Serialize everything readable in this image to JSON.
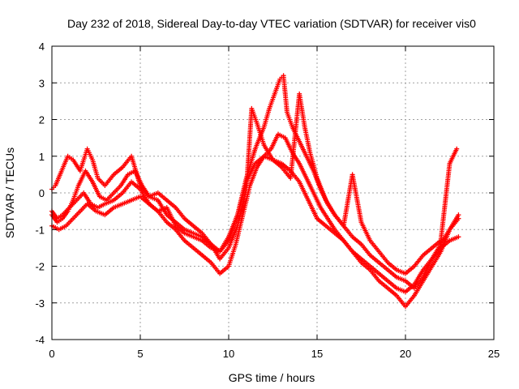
{
  "chart_data": {
    "type": "scatter",
    "title": "Day 232 of 2018, Sidereal Day-to-day VTEC variation (SDTVAR) for receiver vis0",
    "xlabel": "GPS time / hours",
    "ylabel": "SDTVAR / TECUs",
    "xlim": [
      0,
      25
    ],
    "ylim": [
      -4,
      4
    ],
    "xticks": [
      0,
      5,
      10,
      15,
      20,
      25
    ],
    "yticks": [
      -4,
      -3,
      -2,
      -1,
      0,
      1,
      2,
      3,
      4
    ],
    "xtick_labels": [
      "0",
      "5",
      "10",
      "15",
      "20",
      "25"
    ],
    "ytick_labels": [
      "-4",
      "-3",
      "-2",
      "-1",
      "0",
      "1",
      "2",
      "3",
      "4"
    ],
    "grid": true,
    "marker": "+",
    "color": "#ff0000",
    "series": [
      {
        "name": "track-1",
        "x": [
          0.0,
          0.3,
          0.6,
          1.0,
          1.4,
          1.8,
          2.2,
          2.6,
          3.0,
          3.5,
          4.0,
          4.5,
          5.0,
          5.5,
          6.0,
          6.5,
          7.0,
          7.5,
          8.0,
          8.5,
          9.0,
          9.5,
          10.0,
          10.5,
          11.0,
          11.5,
          12.0,
          12.5,
          13.0,
          13.5,
          14.0,
          14.5,
          15.0,
          15.5,
          16.0,
          16.5,
          17.0,
          17.5,
          18.0,
          18.5,
          19.0,
          19.5,
          20.0,
          20.5,
          21.0,
          21.5,
          22.0,
          22.5,
          23.0
        ],
        "y": [
          -0.5,
          -0.7,
          -0.6,
          -0.4,
          -0.2,
          0.0,
          -0.3,
          -0.4,
          -0.3,
          -0.2,
          0.0,
          0.3,
          0.1,
          -0.3,
          -0.5,
          -0.4,
          -0.9,
          -1.1,
          -1.2,
          -1.3,
          -1.5,
          -1.6,
          -1.2,
          -0.6,
          0.3,
          0.8,
          1.0,
          0.9,
          0.8,
          0.6,
          0.3,
          -0.2,
          -0.7,
          -0.9,
          -1.1,
          -1.3,
          -1.6,
          -1.8,
          -2.0,
          -2.2,
          -2.4,
          -2.6,
          -2.7,
          -2.5,
          -2.1,
          -1.8,
          -1.5,
          -1.3,
          -1.2
        ]
      },
      {
        "name": "track-2",
        "x": [
          0.0,
          0.4,
          0.8,
          1.2,
          1.6,
          2.0,
          2.5,
          3.0,
          3.5,
          4.0,
          4.5,
          5.0,
          5.5,
          6.0,
          6.5,
          7.0,
          7.5,
          8.0,
          8.5,
          9.0,
          9.5,
          10.0,
          10.4,
          10.8,
          11.2,
          11.6,
          12.0,
          12.4,
          12.8,
          13.2,
          13.6,
          14.0,
          14.4,
          14.8,
          15.2,
          15.6,
          16.0,
          16.5,
          17.0,
          17.5,
          18.0,
          18.5,
          19.0,
          19.5,
          20.0,
          20.5,
          21.0,
          21.5,
          22.0,
          22.5,
          23.0
        ],
        "y": [
          -0.9,
          -1.0,
          -0.9,
          -0.7,
          -0.5,
          -0.3,
          -0.5,
          -0.6,
          -0.4,
          -0.3,
          -0.2,
          -0.1,
          -0.3,
          -0.5,
          -0.8,
          -1.0,
          -1.3,
          -1.5,
          -1.7,
          -1.9,
          -2.2,
          -2.0,
          -1.4,
          -0.6,
          0.2,
          0.7,
          1.0,
          1.2,
          1.6,
          1.5,
          1.1,
          0.8,
          0.4,
          0.0,
          -0.4,
          -0.7,
          -1.0,
          -1.3,
          -1.6,
          -1.9,
          -2.1,
          -2.4,
          -2.6,
          -2.8,
          -3.1,
          -2.8,
          -2.4,
          -2.0,
          -1.6,
          -1.0,
          -0.7
        ]
      },
      {
        "name": "track-3",
        "x": [
          0.0,
          0.3,
          0.6,
          0.9,
          1.2,
          1.5,
          1.9,
          2.3,
          2.7,
          3.1,
          3.5,
          3.9,
          4.3,
          4.7,
          5.1,
          5.5,
          6.0,
          6.5,
          7.0,
          7.5,
          8.0,
          8.5,
          9.0,
          9.5,
          10.0,
          10.5,
          11.0,
          11.5,
          12.0,
          12.3,
          12.6,
          12.9,
          13.1,
          13.3,
          13.6,
          14.0,
          14.4,
          14.8,
          15.2,
          15.6,
          16.0,
          16.5,
          17.0,
          17.5,
          18.0,
          18.5,
          19.0,
          19.5,
          20.0,
          20.5,
          21.0,
          21.5,
          22.0,
          22.5,
          23.0
        ],
        "y": [
          -0.6,
          -0.8,
          -0.7,
          -0.5,
          -0.2,
          0.2,
          0.6,
          0.3,
          -0.1,
          -0.2,
          0.0,
          0.2,
          0.5,
          0.6,
          0.2,
          -0.1,
          -0.2,
          -0.6,
          -0.8,
          -1.0,
          -1.1,
          -1.2,
          -1.4,
          -1.6,
          -1.3,
          -0.6,
          0.4,
          1.2,
          1.8,
          2.3,
          2.7,
          3.1,
          3.2,
          2.2,
          1.8,
          1.4,
          1.0,
          0.6,
          0.1,
          -0.3,
          -0.6,
          -0.9,
          -1.2,
          -1.4,
          -1.7,
          -1.9,
          -2.1,
          -2.3,
          -2.4,
          -2.6,
          -2.3,
          -1.8,
          -1.4,
          -1.0,
          -0.6
        ]
      },
      {
        "name": "track-4",
        "x": [
          0.0,
          0.2,
          0.9,
          1.2,
          1.6,
          2.0,
          2.3,
          2.6,
          3.0,
          3.5,
          4.0,
          4.5,
          5.0,
          5.5,
          6.0,
          6.5,
          7.0,
          7.5,
          8.0,
          8.5,
          9.0,
          9.5,
          10.0,
          10.5,
          11.0,
          11.3,
          11.6,
          12.0,
          12.5,
          13.0,
          13.5,
          14.0,
          14.3,
          14.6,
          15.0,
          15.5,
          16.0,
          16.5,
          17.0,
          17.5,
          18.0,
          18.5,
          19.0,
          19.5,
          20.0,
          20.5,
          21.0,
          21.5,
          22.0,
          22.5,
          22.9
        ],
        "y": [
          0.1,
          0.2,
          1.0,
          0.9,
          0.6,
          1.2,
          0.9,
          0.4,
          0.2,
          0.5,
          0.7,
          1.0,
          0.2,
          -0.1,
          0.0,
          -0.2,
          -0.4,
          -0.7,
          -0.9,
          -1.1,
          -1.4,
          -1.8,
          -1.5,
          -0.9,
          0.1,
          2.3,
          1.9,
          1.3,
          0.9,
          0.7,
          0.4,
          2.7,
          1.8,
          1.1,
          0.4,
          -0.2,
          -0.6,
          -0.9,
          0.5,
          -0.8,
          -1.3,
          -1.6,
          -1.9,
          -2.1,
          -2.2,
          -2.0,
          -1.7,
          -1.5,
          -1.3,
          0.8,
          1.2
        ]
      }
    ]
  }
}
